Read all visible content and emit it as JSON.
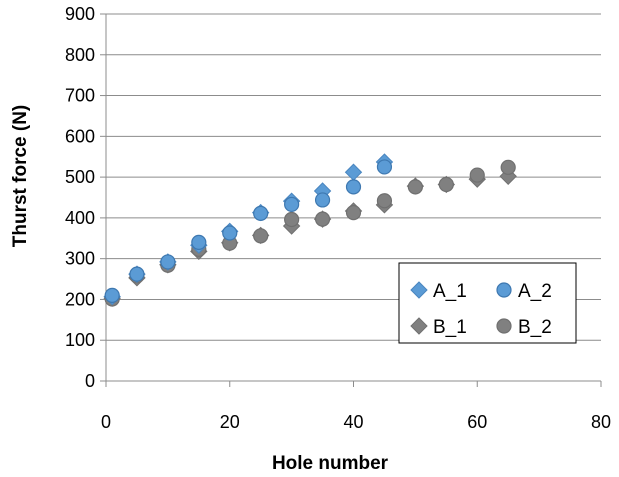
{
  "chart_data": {
    "type": "scatter",
    "xlabel": "Hole number",
    "ylabel": "Thurst  force (N)",
    "xlim": [
      0,
      80
    ],
    "ylim": [
      0,
      900
    ],
    "x_ticks": [
      "0",
      "20",
      "40",
      "60",
      "80"
    ],
    "y_ticks": [
      "0",
      "100",
      "200",
      "300",
      "400",
      "500",
      "600",
      "700",
      "800",
      "900"
    ],
    "grid": "horizontal",
    "legend_position": "bottom-right",
    "series": [
      {
        "name": "A_1",
        "marker": "diamond",
        "color": "#5B9BD5",
        "points": [
          [
            1,
            207
          ],
          [
            5,
            262
          ],
          [
            10,
            292
          ],
          [
            15,
            333
          ],
          [
            20,
            367
          ],
          [
            25,
            413
          ],
          [
            30,
            441
          ],
          [
            35,
            466
          ],
          [
            40,
            512
          ],
          [
            45,
            537
          ]
        ]
      },
      {
        "name": "A_2",
        "marker": "circle",
        "color": "#5B9BD5",
        "points": [
          [
            1,
            210
          ],
          [
            5,
            262
          ],
          [
            10,
            292
          ],
          [
            15,
            340
          ],
          [
            20,
            363
          ],
          [
            25,
            411
          ],
          [
            30,
            433
          ],
          [
            35,
            444
          ],
          [
            40,
            476
          ],
          [
            45,
            525
          ]
        ]
      },
      {
        "name": "B_1",
        "marker": "diamond",
        "color": "#808080",
        "points": [
          [
            1,
            203
          ],
          [
            5,
            253
          ],
          [
            10,
            285
          ],
          [
            15,
            318
          ],
          [
            20,
            339
          ],
          [
            25,
            357
          ],
          [
            30,
            380
          ],
          [
            35,
            397
          ],
          [
            40,
            417
          ],
          [
            45,
            432
          ],
          [
            50,
            478
          ],
          [
            55,
            482
          ],
          [
            60,
            495
          ],
          [
            65,
            502
          ]
        ]
      },
      {
        "name": "B_2",
        "marker": "circle",
        "color": "#808080",
        "points": [
          [
            1,
            201
          ],
          [
            5,
            258
          ],
          [
            10,
            284
          ],
          [
            15,
            323
          ],
          [
            20,
            338
          ],
          [
            25,
            356
          ],
          [
            30,
            396
          ],
          [
            35,
            397
          ],
          [
            40,
            413
          ],
          [
            45,
            442
          ],
          [
            50,
            476
          ],
          [
            55,
            482
          ],
          [
            60,
            505
          ],
          [
            65,
            524
          ]
        ]
      }
    ]
  }
}
